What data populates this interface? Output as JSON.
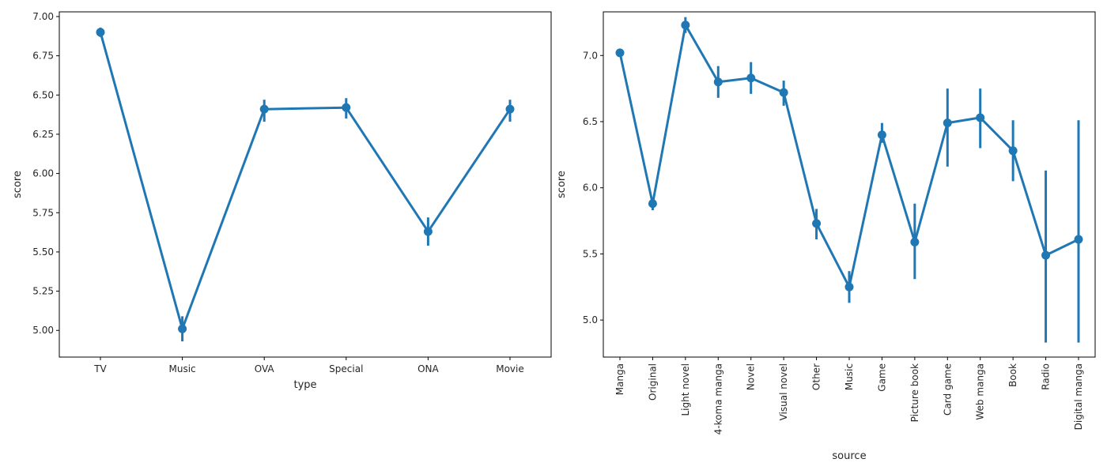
{
  "chart_data": [
    {
      "type": "line",
      "xlabel": "type",
      "ylabel": "score",
      "categories": [
        "TV",
        "Music",
        "OVA",
        "Special",
        "ONA",
        "Movie"
      ],
      "values": [
        6.9,
        5.01,
        6.41,
        6.42,
        5.63,
        6.41
      ],
      "ci_low": [
        6.87,
        4.93,
        6.33,
        6.35,
        5.54,
        6.33
      ],
      "ci_high": [
        6.93,
        5.09,
        6.47,
        6.48,
        5.72,
        6.47
      ],
      "ylim": [
        4.83,
        7.03
      ],
      "yticks": [
        5.0,
        5.25,
        5.5,
        5.75,
        6.0,
        6.25,
        6.5,
        6.75,
        7.0
      ],
      "ytick_labels": [
        "5.00",
        "5.25",
        "5.50",
        "5.75",
        "6.00",
        "6.25",
        "6.50",
        "6.75",
        "7.00"
      ],
      "xtick_rotation": 0,
      "color": "#1f77b4"
    },
    {
      "type": "line",
      "xlabel": "source",
      "ylabel": "score",
      "categories": [
        "Manga",
        "Original",
        "Light novel",
        "4-koma manga",
        "Novel",
        "Visual novel",
        "Other",
        "Music",
        "Game",
        "Picture book",
        "Card game",
        "Web manga",
        "Book",
        "Radio",
        "Digital manga"
      ],
      "values": [
        7.02,
        5.88,
        7.23,
        6.8,
        6.83,
        6.72,
        5.73,
        5.25,
        6.4,
        5.59,
        6.49,
        6.53,
        6.28,
        5.49,
        5.61
      ],
      "ci_low": [
        6.99,
        5.83,
        7.17,
        6.68,
        6.71,
        6.62,
        5.61,
        5.13,
        6.34,
        5.31,
        6.16,
        6.3,
        6.05,
        4.83,
        4.83
      ],
      "ci_high": [
        7.05,
        5.92,
        7.29,
        6.92,
        6.95,
        6.81,
        5.84,
        5.37,
        6.49,
        5.88,
        6.75,
        6.75,
        6.51,
        6.13,
        6.51
      ],
      "ylim": [
        4.72,
        7.33
      ],
      "yticks": [
        5.0,
        5.5,
        6.0,
        6.5,
        7.0
      ],
      "ytick_labels": [
        "5.0",
        "5.5",
        "6.0",
        "6.5",
        "7.0"
      ],
      "xtick_rotation": -90,
      "color": "#1f77b4"
    }
  ]
}
